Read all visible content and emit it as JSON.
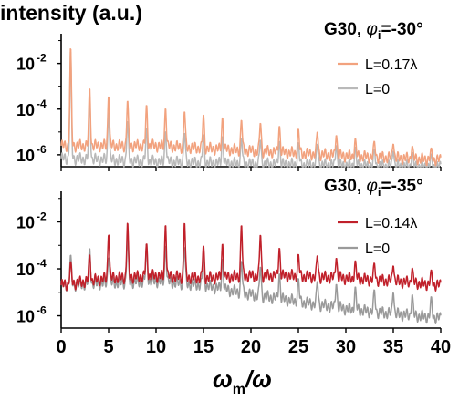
{
  "ylabel": "intensity (a.u.)",
  "xlabel_main": "ω",
  "xlabel_sub": "m",
  "xlabel_tail": "/ω",
  "chart_data": [
    {
      "type": "line",
      "panel": "top",
      "title_prefix": "G30, ",
      "title_symbol": "φ",
      "title_sub": "i",
      "title_suffix": "=-30°",
      "yscale": "log",
      "ylim": [
        3e-07,
        0.2
      ],
      "xlim": [
        0,
        40
      ],
      "y_ticks": [
        "10",
        "10",
        "10"
      ],
      "y_tick_exponents": [
        "-2",
        "-4",
        "-6"
      ],
      "y_tick_values": [
        0.01,
        0.0001,
        1e-06
      ],
      "x_ticks": [
        "0",
        "5",
        "10",
        "15",
        "20",
        "25",
        "30",
        "35",
        "40"
      ],
      "legend_position": "right",
      "series": [
        {
          "name": "L=0.17λ",
          "color": "#f2a27e",
          "peaks": [
            [
              1,
              0.06
            ],
            [
              2,
              0.0022
            ],
            [
              3,
              0.0009
            ],
            [
              4,
              0.0007
            ],
            [
              5,
              0.0004
            ],
            [
              6,
              0.0003
            ],
            [
              7,
              0.00025
            ],
            [
              8,
              0.0002
            ],
            [
              9,
              0.00016
            ],
            [
              10,
              0.00013
            ],
            [
              12,
              0.0001
            ],
            [
              14,
              7e-05
            ],
            [
              16,
              5e-05
            ],
            [
              18,
              4e-05
            ],
            [
              20,
              3e-05
            ],
            [
              22,
              2.2e-05
            ],
            [
              24,
              1.6e-05
            ],
            [
              26,
              1.2e-05
            ],
            [
              28,
              9e-06
            ],
            [
              30,
              6e-06
            ],
            [
              32,
              4.5e-06
            ],
            [
              34,
              3.5e-06
            ],
            [
              36,
              2.7e-06
            ],
            [
              38,
              2.2e-06
            ],
            [
              40,
              1.8e-06
            ]
          ],
          "floor": [
            [
              0,
              2.5e-06
            ],
            [
              10,
              2.5e-06
            ],
            [
              20,
              1.5e-06
            ],
            [
              30,
              9e-07
            ],
            [
              40,
              6e-07
            ]
          ]
        },
        {
          "name": "L=0",
          "color": "#b9b9b9",
          "peaks": [
            [
              1,
              0.045
            ],
            [
              2,
              0.002
            ],
            [
              3,
              0.0004
            ],
            [
              5,
              8e-05
            ],
            [
              8,
              2e-05
            ],
            [
              10,
              1.2e-05
            ],
            [
              15,
              8e-06
            ],
            [
              20,
              5e-06
            ],
            [
              25,
              3.5e-06
            ],
            [
              30,
              2.5e-06
            ],
            [
              35,
              1.5e-06
            ],
            [
              40,
              1e-06
            ]
          ],
          "floor": [
            [
              0,
              7e-07
            ],
            [
              10,
              5e-07
            ],
            [
              20,
              4e-07
            ],
            [
              30,
              3.5e-07
            ],
            [
              40,
              3e-07
            ]
          ]
        }
      ]
    },
    {
      "type": "line",
      "panel": "bottom",
      "title_prefix": "G30, ",
      "title_symbol": "φ",
      "title_sub": "i",
      "title_suffix": "=-35°",
      "yscale": "log",
      "ylim": [
        3e-07,
        0.2
      ],
      "xlim": [
        0,
        40
      ],
      "y_ticks": [
        "10",
        "10",
        "10"
      ],
      "y_tick_exponents": [
        "-2",
        "-4",
        "-6"
      ],
      "y_tick_values": [
        0.01,
        0.0001,
        1e-06
      ],
      "x_ticks": [
        "0",
        "5",
        "10",
        "15",
        "20",
        "25",
        "30",
        "35",
        "40"
      ],
      "legend_position": "right",
      "series": [
        {
          "name": "L=0.14λ",
          "color": "#c0202a",
          "peaks": [
            [
              1,
              0.0002
            ],
            [
              2,
              0.0012
            ],
            [
              3,
              0.0004
            ],
            [
              4,
              0.002
            ],
            [
              5,
              0.003
            ],
            [
              6,
              0.05
            ],
            [
              7,
              0.01
            ],
            [
              8,
              0.0025
            ],
            [
              9,
              0.0012
            ],
            [
              10,
              0.005
            ],
            [
              11,
              0.008
            ],
            [
              12,
              0.015
            ],
            [
              13,
              0.01
            ],
            [
              14,
              0.006
            ],
            [
              15,
              0.001
            ],
            [
              16,
              0.0008
            ],
            [
              17,
              0.0012
            ],
            [
              18,
              0.003
            ],
            [
              19,
              0.008
            ],
            [
              20,
              0.006
            ],
            [
              21,
              0.003
            ],
            [
              22,
              0.0015
            ],
            [
              23,
              0.0008
            ],
            [
              24,
              0.00045
            ],
            [
              26,
              0.0004
            ],
            [
              28,
              0.00035
            ],
            [
              30,
              0.00025
            ],
            [
              32,
              0.0002
            ],
            [
              34,
              0.00016
            ],
            [
              36,
              0.00012
            ],
            [
              38,
              0.0001
            ],
            [
              40,
              8e-05
            ]
          ],
          "floor": [
            [
              0,
              2e-05
            ],
            [
              5,
              4e-05
            ],
            [
              10,
              5e-05
            ],
            [
              15,
              4e-05
            ],
            [
              20,
              5e-05
            ],
            [
              24,
              5e-05
            ],
            [
              30,
              4e-05
            ],
            [
              35,
              3e-05
            ],
            [
              40,
              2e-05
            ]
          ]
        },
        {
          "name": "L=0",
          "color": "#9a9a9a",
          "peaks": [
            [
              1,
              0.0004
            ],
            [
              2,
              0.0007
            ],
            [
              3,
              0.0008
            ],
            [
              4,
              0.0004
            ],
            [
              5,
              0.0003
            ],
            [
              6,
              0.003
            ],
            [
              7,
              0.003
            ],
            [
              8,
              0.0015
            ],
            [
              10,
              0.001
            ],
            [
              12,
              0.001
            ],
            [
              14,
              0.0008
            ],
            [
              16,
              0.0003
            ],
            [
              18,
              0.00025
            ],
            [
              20,
              0.0002
            ],
            [
              22,
              8e-05
            ],
            [
              25,
              4e-05
            ],
            [
              30,
              2e-05
            ],
            [
              35,
              1e-05
            ],
            [
              40,
              6e-06
            ]
          ],
          "floor": [
            [
              0,
              2e-05
            ],
            [
              10,
              3e-05
            ],
            [
              15,
              2e-05
            ],
            [
              20,
              8e-06
            ],
            [
              25,
              4e-06
            ],
            [
              30,
              2e-06
            ],
            [
              35,
              1.2e-06
            ],
            [
              40,
              8e-07
            ]
          ]
        }
      ]
    }
  ]
}
